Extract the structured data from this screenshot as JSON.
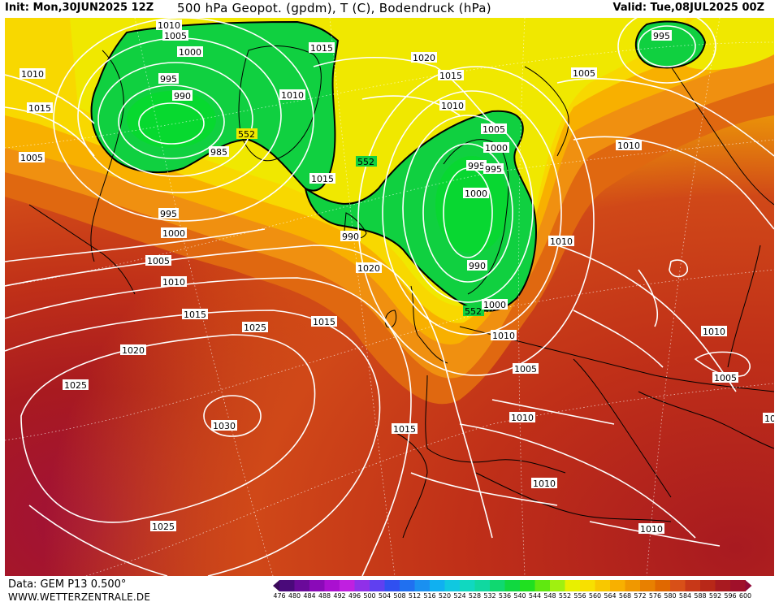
{
  "header": {
    "init": "Init: Mon,30JUN2025 12Z",
    "title": "500 hPa Geopot. (gpdm), T (C), Bodendruck (hPa)",
    "valid": "Valid: Tue,08JUL2025 00Z"
  },
  "footer": {
    "data_source": "Data: GEM P13 0.500°",
    "website": "WWW.WETTERZENTRALE.DE"
  },
  "colorbar": {
    "ticks": [
      "476",
      "480",
      "484",
      "488",
      "492",
      "496",
      "500",
      "504",
      "508",
      "512",
      "516",
      "520",
      "524",
      "528",
      "532",
      "536",
      "540",
      "544",
      "548",
      "552",
      "556",
      "560",
      "564",
      "568",
      "572",
      "576",
      "580",
      "584",
      "588",
      "592",
      "596",
      "600"
    ],
    "colors": [
      "#3a0a5a",
      "#4a0a7a",
      "#6a0a9a",
      "#8a0ab8",
      "#aa10d0",
      "#c020e0",
      "#9030e8",
      "#6040f0",
      "#3050f0",
      "#2070f0",
      "#1a90f0",
      "#10b0f0",
      "#10c8e0",
      "#10d8c0",
      "#10d8a0",
      "#10d870",
      "#10d840",
      "#20e020",
      "#60e810",
      "#a0f010",
      "#e8f000",
      "#f8e000",
      "#f8c800",
      "#f8b000",
      "#f09800",
      "#e88000",
      "#e06800",
      "#d85018",
      "#c83818",
      "#b82818",
      "#a81a20",
      "#a0102a",
      "#900a38"
    ]
  },
  "map": {
    "colors": {
      "green_low": "#10d040",
      "green_bright": "#00e020",
      "yellow": "#f0e800",
      "gold": "#f8c000",
      "orange": "#f09010",
      "dark_orange": "#e06810",
      "red_orange": "#d04818",
      "red": "#c03018",
      "dark_red": "#a81a20",
      "crimson": "#a0103a",
      "isobar": "#ffffff",
      "coast": "#000000",
      "gpdm_line": "#000000"
    },
    "green_contour_labels": [
      "552",
      "552",
      "552"
    ],
    "isobar_labels": [
      "1010",
      "1005",
      "1000",
      "995",
      "990",
      "985",
      "1015",
      "1010",
      "995",
      "1000",
      "1005",
      "1010",
      "1015",
      "1020",
      "1015",
      "1010",
      "1010",
      "1015",
      "1020",
      "1005",
      "1015",
      "1020",
      "1005",
      "1000",
      "995",
      "1000",
      "995",
      "990",
      "990",
      "1000",
      "1010",
      "1020",
      "1015",
      "1010",
      "1005",
      "1010",
      "1005",
      "1010",
      "1010",
      "1005",
      "1020",
      "1025",
      "1025",
      "1030",
      "1025",
      "1015",
      "1010",
      "1010",
      "1010",
      "995"
    ]
  }
}
